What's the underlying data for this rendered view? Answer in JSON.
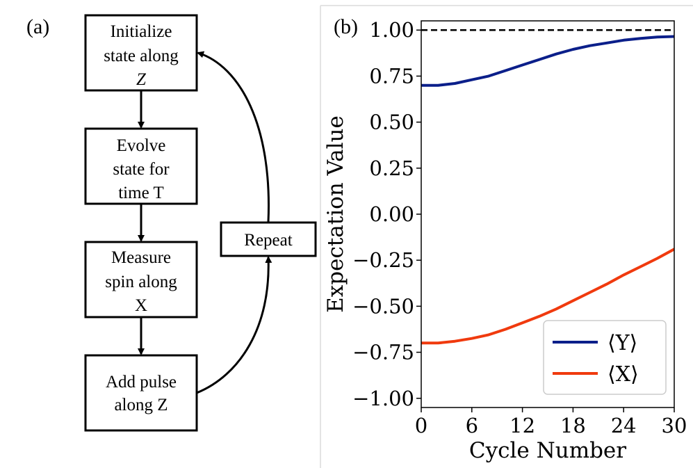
{
  "panel_a": {
    "label": "(a)",
    "boxes": [
      {
        "lines": [
          "Initialize",
          "state along",
          "Z"
        ]
      },
      {
        "lines": [
          "Evolve",
          "state for",
          "time T"
        ]
      },
      {
        "lines": [
          "Measure",
          "spin along",
          "X"
        ]
      },
      {
        "lines": [
          "Add pulse",
          "along Z"
        ]
      }
    ],
    "repeat_label": "Repeat"
  },
  "panel_b": {
    "label": "(b)"
  },
  "colors": {
    "y_series": "#0b1f8a",
    "x_series": "#f03a0e",
    "reference": "#000000"
  },
  "chart_data": {
    "type": "line",
    "title": "",
    "xlabel": "Cycle Number",
    "ylabel": "Expectation Value",
    "xlim": [
      0,
      30
    ],
    "ylim": [
      -1.05,
      1.05
    ],
    "xticks": [
      0,
      6,
      12,
      18,
      24,
      30
    ],
    "yticks": [
      1.0,
      0.75,
      0.5,
      0.25,
      0.0,
      -0.25,
      -0.5,
      -0.75,
      -1.0
    ],
    "ytick_labels": [
      "1.00",
      "0.75",
      "0.50",
      "0.25",
      "0.00",
      "−0.25",
      "−0.50",
      "−0.75",
      "−1.00"
    ],
    "reference_line": {
      "y": 1.0,
      "style": "dashed"
    },
    "legend": {
      "position": "lower-right",
      "entries": [
        "⟨Y⟩",
        "⟨X⟩"
      ]
    },
    "series": [
      {
        "name": "⟨Y⟩",
        "x": [
          0,
          2,
          4,
          6,
          8,
          10,
          12,
          14,
          16,
          18,
          20,
          22,
          24,
          26,
          28,
          30
        ],
        "values": [
          0.7,
          0.7,
          0.71,
          0.73,
          0.75,
          0.78,
          0.81,
          0.84,
          0.87,
          0.895,
          0.915,
          0.93,
          0.945,
          0.955,
          0.962,
          0.965
        ]
      },
      {
        "name": "⟨X⟩",
        "x": [
          0,
          2,
          4,
          6,
          8,
          10,
          12,
          14,
          16,
          18,
          20,
          22,
          24,
          26,
          28,
          30
        ],
        "values": [
          -0.7,
          -0.7,
          -0.69,
          -0.675,
          -0.655,
          -0.625,
          -0.59,
          -0.555,
          -0.515,
          -0.47,
          -0.425,
          -0.38,
          -0.33,
          -0.285,
          -0.24,
          -0.19
        ]
      }
    ]
  }
}
